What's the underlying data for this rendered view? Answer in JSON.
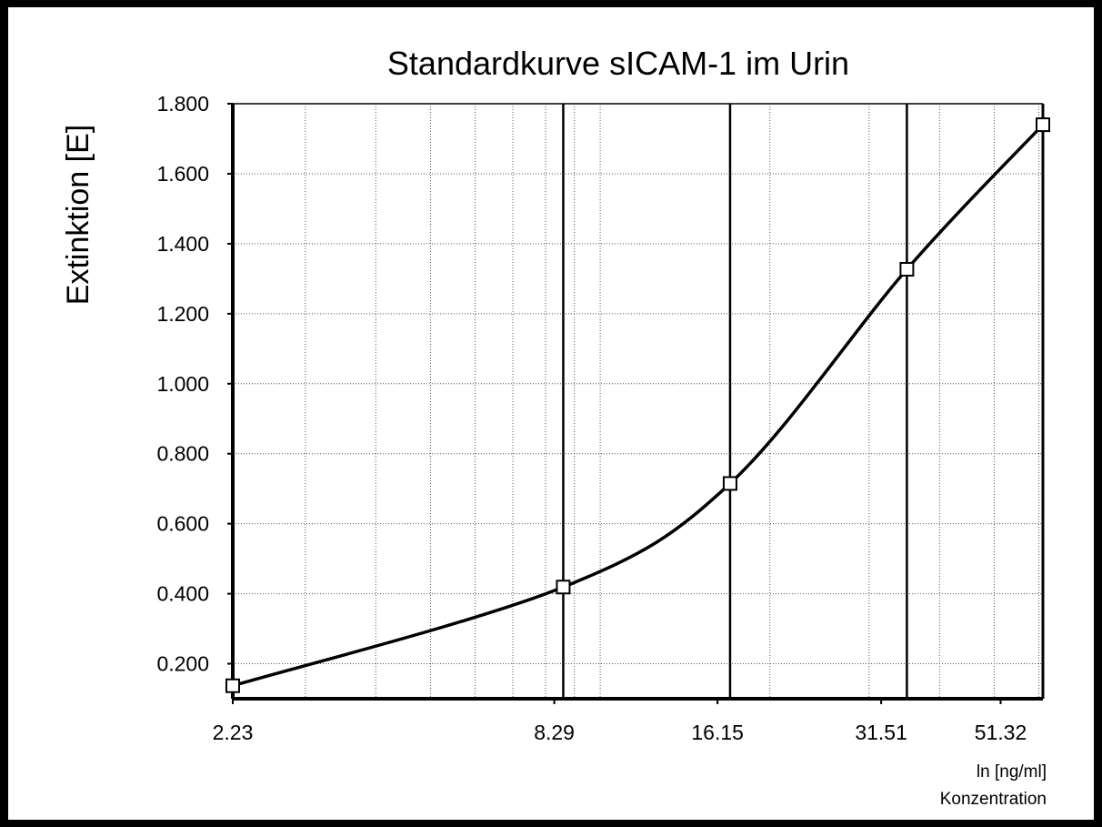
{
  "chart_data": {
    "type": "line",
    "title": "Standardkurve sICAM-1 im Urin",
    "ylabel": "Extinktion [E]",
    "xlabel_line1": "ln [ng/ml]",
    "xlabel_line2": "Konzentration",
    "xscale": "log",
    "xlim": [
      2.23,
      61.0
    ],
    "ylim": [
      0.1,
      1.8
    ],
    "x_tick_labels": [
      {
        "value": 2.23,
        "label": "2.23"
      },
      {
        "value": 8.29,
        "label": "8.29"
      },
      {
        "value": 16.15,
        "label": "16.15"
      },
      {
        "value": 31.51,
        "label": "31.51"
      },
      {
        "value": 51.32,
        "label": "51.32"
      }
    ],
    "y_tick_labels": [
      {
        "value": 0.2,
        "label": "0.200"
      },
      {
        "value": 0.4,
        "label": "0.400"
      },
      {
        "value": 0.6,
        "label": "0.600"
      },
      {
        "value": 0.8,
        "label": "0.800"
      },
      {
        "value": 1.0,
        "label": "1.000"
      },
      {
        "value": 1.2,
        "label": "1.200"
      },
      {
        "value": 1.4,
        "label": "1.400"
      },
      {
        "value": 1.6,
        "label": "1.600"
      },
      {
        "value": 1.8,
        "label": "1.800"
      }
    ],
    "x_minor_grid": [
      3,
      4,
      5,
      6,
      7,
      8,
      9,
      10,
      20,
      30,
      40,
      50,
      60
    ],
    "vertical_markers": [
      8.6,
      17.0,
      35.0
    ],
    "grid": true,
    "series": [
      {
        "points": [
          {
            "x": 2.23,
            "y": 0.137
          },
          {
            "x": 8.6,
            "y": 0.419
          },
          {
            "x": 17.0,
            "y": 0.715
          },
          {
            "x": 35.0,
            "y": 1.327
          },
          {
            "x": 61.0,
            "y": 1.74
          }
        ],
        "marker": "square"
      }
    ]
  }
}
